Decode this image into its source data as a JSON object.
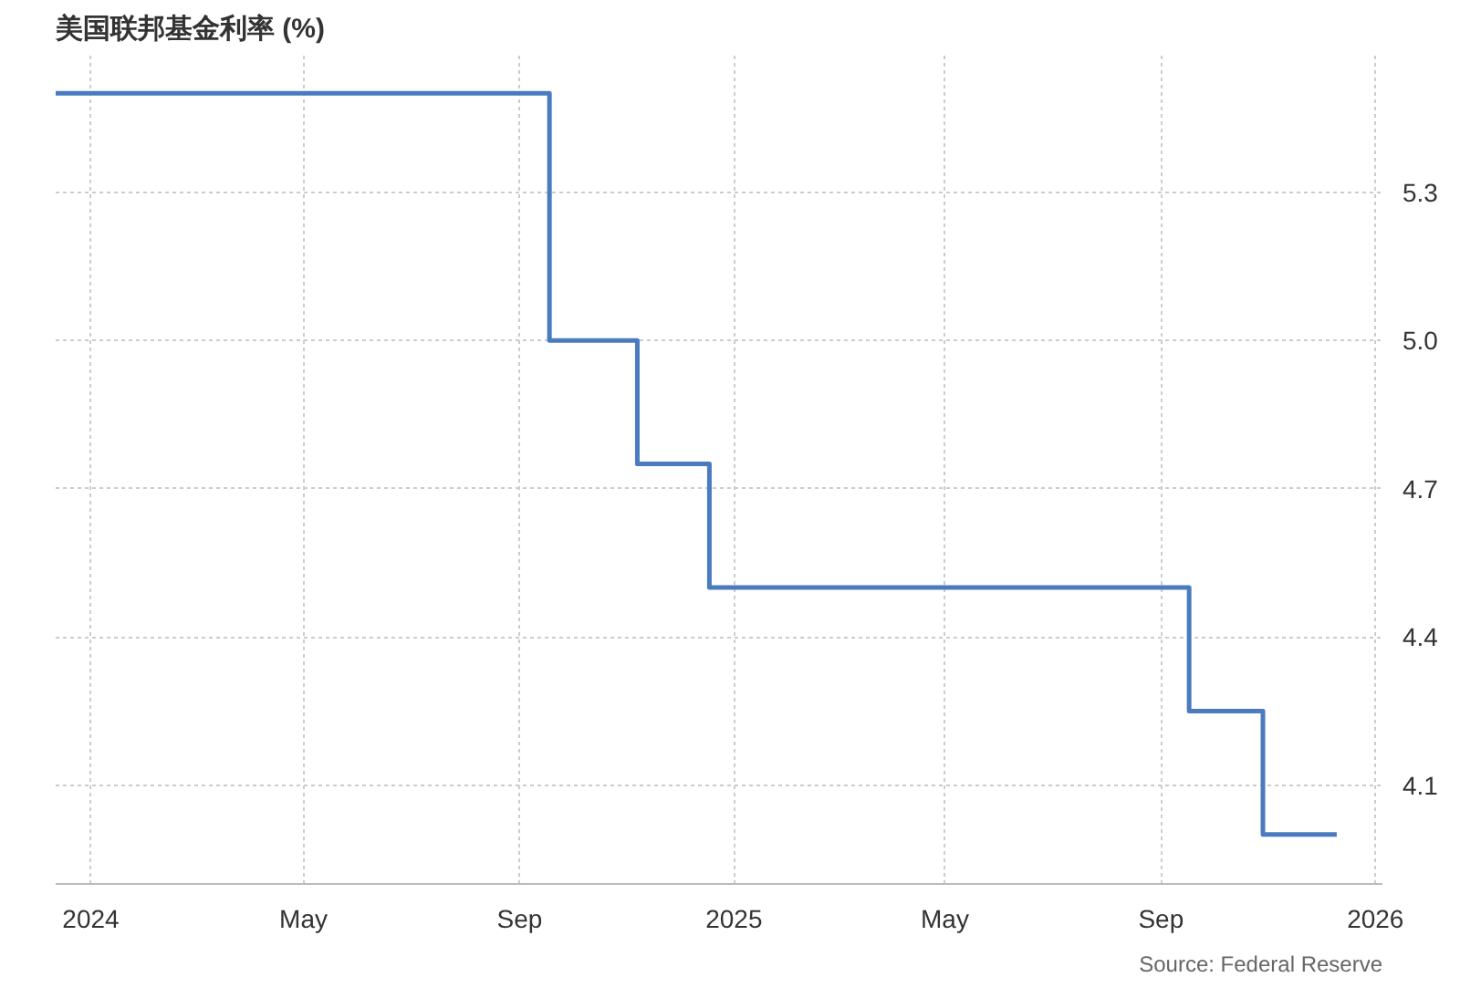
{
  "chart_data": {
    "type": "step",
    "title": "美国联邦基金利率 (%)",
    "annotations": [
      "Source: Federal Reserve"
    ],
    "x": [
      "2023-12-12",
      "2024-09-18",
      "2024-11-07",
      "2024-12-18",
      "2025-09-17",
      "2025-10-29",
      "2025-12-10"
    ],
    "series": [
      {
        "color": "#4a7bbf",
        "values": [
          5.5,
          5.0,
          4.75,
          4.5,
          4.25,
          4.0,
          4.0
        ]
      }
    ],
    "xlim": [
      "2023-12-12",
      "2026-01-05"
    ],
    "xticks": [
      {
        "value": "2024-01-01",
        "label": "2024"
      },
      {
        "value": "2024-05-01",
        "label": "May"
      },
      {
        "value": "2024-09-01",
        "label": "Sep"
      },
      {
        "value": "2025-01-01",
        "label": "2025"
      },
      {
        "value": "2025-05-01",
        "label": "May"
      },
      {
        "value": "2025-09-01",
        "label": "Sep"
      },
      {
        "value": "2026-01-01",
        "label": "2026"
      }
    ],
    "ylim": [
      3.9,
      5.58
    ],
    "yticks": [
      4.1,
      4.4,
      4.7,
      {
        "value": 5.0,
        "label": "5.0"
      },
      5.3
    ],
    "grid": true
  }
}
